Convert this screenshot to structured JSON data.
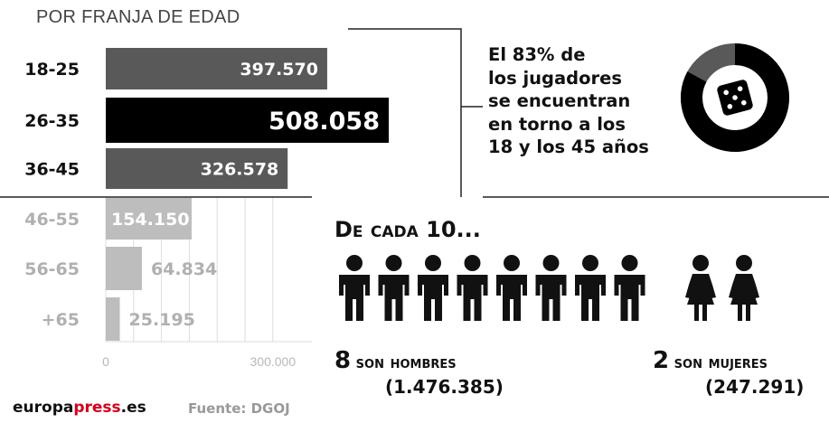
{
  "header": {
    "title": "POR FRANJA DE EDAD"
  },
  "chart_data": {
    "type": "bar",
    "orientation": "horizontal",
    "categories": [
      "18-25",
      "26-35",
      "36-45",
      "46-55",
      "56-65",
      "+65"
    ],
    "values": [
      397570,
      508058,
      326578,
      154150,
      64834,
      25195
    ],
    "value_labels": [
      "397.570",
      "508.058",
      "326.578",
      "154.150",
      "64.834",
      "25.195"
    ],
    "xlim": [
      0,
      560000
    ],
    "x_ticks": [
      0,
      300000
    ],
    "x_tick_labels": [
      "0",
      "300.000"
    ],
    "grid": true,
    "colors": [
      "#595959",
      "#000000",
      "#595959",
      "#bdbdbd",
      "#bdbdbd",
      "#bdbdbd"
    ],
    "highlight_index": 1
  },
  "stat": {
    "lines": [
      "El 83% de",
      "los jugadores",
      "se encuentran",
      "en torno a los",
      "18 y los 45 años"
    ],
    "donut_fraction": 0.83,
    "icon": "dice-icon"
  },
  "people": {
    "title": "De cada 10...",
    "men_count": 8,
    "women_count": 2,
    "men_num": "8",
    "men_label": "son hombres",
    "men_total": "(1.476.385)",
    "women_num": "2",
    "women_label": "son mujeres",
    "women_total": "(247.291)",
    "icons": [
      "man-icon",
      "woman-icon"
    ]
  },
  "footer": {
    "brand_part1": "europa",
    "brand_part2": "press",
    "brand_part3": ".es",
    "source": "Fuente: DGOJ"
  },
  "colors": {
    "dark_bar": "#595959",
    "highlight_bar": "#000000",
    "light_bar": "#bdbdbd",
    "brand_red": "#d2001e"
  }
}
